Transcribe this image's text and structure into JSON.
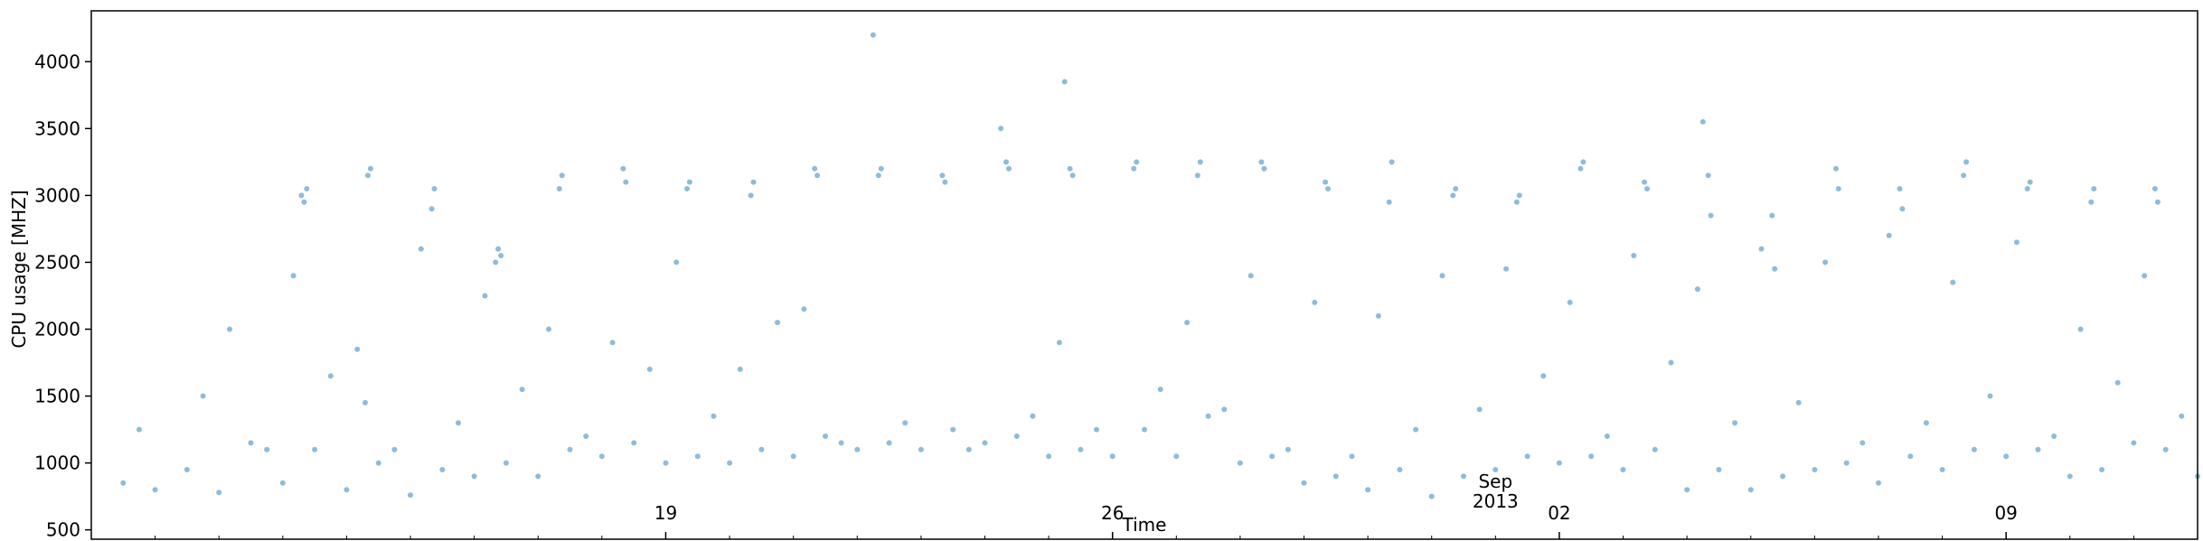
{
  "colors": {
    "series": "#1f77b4",
    "axis": "#000000",
    "background": "#ffffff"
  },
  "chart_data": {
    "type": "scatter",
    "title": "",
    "xlabel": "Time",
    "ylabel": "CPU usage [MHZ]",
    "xlim": [
      "2013-08-10",
      "2013-09-12"
    ],
    "ylim": [
      430,
      4380
    ],
    "y_ticks": [
      500,
      1000,
      1500,
      2000,
      2500,
      3000,
      3500,
      4000
    ],
    "x_ticks": [
      {
        "date": "2013-08-19",
        "label": "19"
      },
      {
        "date": "2013-08-26",
        "label": "26"
      },
      {
        "date": "2013-09-02",
        "label": "02"
      },
      {
        "date": "2013-09-09",
        "label": "09"
      }
    ],
    "x_secondary_label": {
      "date": "2013-09-01",
      "lines": [
        "Sep",
        "2013"
      ]
    },
    "minor_tick_interval_days": 1,
    "grid": false,
    "legend": "none",
    "marker": {
      "size": "small",
      "alpha": 0.5
    },
    "series": [
      {
        "x": [
          "2013-08-13 07:00",
          "2013-08-13 08:00",
          "2013-08-13 09:00",
          "2013-08-14 07:00",
          "2013-08-14 08:00",
          "2013-08-14 09:00",
          "2013-08-15 08:00",
          "2013-08-15 09:00",
          "2013-08-16 08:00",
          "2013-08-16 09:00",
          "2013-08-16 10:00",
          "2013-08-17 08:00",
          "2013-08-17 09:00",
          "2013-08-18 08:00",
          "2013-08-18 09:00",
          "2013-08-19 08:00",
          "2013-08-19 09:00",
          "2013-08-20 08:00",
          "2013-08-20 09:00",
          "2013-08-21 08:00",
          "2013-08-21 09:00",
          "2013-08-22 08:00",
          "2013-08-22 09:00",
          "2013-08-23 08:00",
          "2013-08-23 09:00",
          "2013-08-24 08:00",
          "2013-08-24 09:00",
          "2013-08-25 08:00",
          "2013-08-25 09:00",
          "2013-08-26 08:00",
          "2013-08-26 09:00",
          "2013-08-27 08:00",
          "2013-08-27 09:00",
          "2013-08-28 08:00",
          "2013-08-28 09:00",
          "2013-08-29 08:00",
          "2013-08-29 09:00",
          "2013-08-30 08:00",
          "2013-08-30 09:00",
          "2013-08-31 08:00",
          "2013-08-31 09:00",
          "2013-09-01 08:00",
          "2013-09-01 09:00",
          "2013-09-02 08:00",
          "2013-09-02 09:00",
          "2013-09-03 08:00",
          "2013-09-03 09:00",
          "2013-09-04 08:00",
          "2013-09-04 09:00",
          "2013-09-05 08:00",
          "2013-09-05 09:00",
          "2013-09-06 08:00",
          "2013-09-06 09:00",
          "2013-09-07 08:00",
          "2013-09-07 09:00",
          "2013-09-08 08:00",
          "2013-09-08 09:00",
          "2013-09-09 08:00",
          "2013-09-09 09:00",
          "2013-09-10 08:00",
          "2013-09-10 09:00",
          "2013-09-11 08:00",
          "2013-09-11 09:00",
          "2013-08-10 12:00",
          "2013-08-11 00:00",
          "2013-08-11 12:00",
          "2013-08-12 00:00",
          "2013-08-12 12:00",
          "2013-08-13 00:00",
          "2013-08-13 12:00",
          "2013-08-14 00:00",
          "2013-08-14 12:00",
          "2013-08-15 00:00",
          "2013-08-15 12:00",
          "2013-08-16 00:00",
          "2013-08-16 12:00",
          "2013-08-17 00:00",
          "2013-08-17 12:00",
          "2013-08-18 00:00",
          "2013-08-18 12:00",
          "2013-08-19 00:00",
          "2013-08-19 12:00",
          "2013-08-20 00:00",
          "2013-08-20 12:00",
          "2013-08-21 00:00",
          "2013-08-21 12:00",
          "2013-08-22 00:00",
          "2013-08-22 12:00",
          "2013-08-23 00:00",
          "2013-08-23 12:00",
          "2013-08-24 00:00",
          "2013-08-24 12:00",
          "2013-08-25 00:00",
          "2013-08-25 12:00",
          "2013-08-26 00:00",
          "2013-08-26 12:00",
          "2013-08-27 00:00",
          "2013-08-27 12:00",
          "2013-08-28 00:00",
          "2013-08-28 12:00",
          "2013-08-29 00:00",
          "2013-08-29 12:00",
          "2013-08-30 00:00",
          "2013-08-30 12:00",
          "2013-08-31 00:00",
          "2013-08-31 12:00",
          "2013-09-01 00:00",
          "2013-09-01 12:00",
          "2013-09-02 00:00",
          "2013-09-02 12:00",
          "2013-09-03 00:00",
          "2013-09-03 12:00",
          "2013-09-04 00:00",
          "2013-09-04 12:00",
          "2013-09-05 00:00",
          "2013-09-05 12:00",
          "2013-09-06 00:00",
          "2013-09-06 12:00",
          "2013-09-07 00:00",
          "2013-09-07 12:00",
          "2013-09-08 00:00",
          "2013-09-08 12:00",
          "2013-09-09 00:00",
          "2013-09-09 12:00",
          "2013-09-10 00:00",
          "2013-09-10 12:00",
          "2013-09-11 00:00",
          "2013-09-11 12:00",
          "2013-09-12 00:00",
          "2013-08-10 18:00",
          "2013-08-11 18:00",
          "2013-08-12 18:00",
          "2013-08-13 18:00",
          "2013-08-14 18:00",
          "2013-08-15 18:00",
          "2013-08-16 18:00",
          "2013-08-17 18:00",
          "2013-08-18 18:00",
          "2013-08-19 18:00",
          "2013-08-20 18:00",
          "2013-08-21 18:00",
          "2013-08-22 18:00",
          "2013-08-23 18:00",
          "2013-08-24 18:00",
          "2013-08-25 18:00",
          "2013-08-26 18:00",
          "2013-08-27 18:00",
          "2013-08-28 18:00",
          "2013-08-29 18:00",
          "2013-08-30 18:00",
          "2013-08-31 18:00",
          "2013-09-01 18:00",
          "2013-09-02 18:00",
          "2013-09-03 18:00",
          "2013-09-04 18:00",
          "2013-09-05 18:00",
          "2013-09-06 18:00",
          "2013-09-07 18:00",
          "2013-09-08 18:00",
          "2013-09-09 18:00",
          "2013-09-10 18:00",
          "2013-09-11 18:00",
          "2013-08-12 04:00",
          "2013-08-13 04:00",
          "2013-08-14 04:00",
          "2013-08-15 04:00",
          "2013-08-16 04:00",
          "2013-08-17 04:00",
          "2013-08-18 04:00",
          "2013-08-19 04:00",
          "2013-08-20 04:00",
          "2013-08-21 04:00",
          "2013-08-25 04:00",
          "2013-08-27 04:00",
          "2013-08-28 04:00",
          "2013-08-29 04:00",
          "2013-08-30 04:00",
          "2013-08-31 04:00",
          "2013-09-01 04:00",
          "2013-09-02 04:00",
          "2013-09-03 04:00",
          "2013-09-04 04:00",
          "2013-09-05 04:00",
          "2013-09-06 04:00",
          "2013-09-07 04:00",
          "2013-09-08 04:00",
          "2013-09-09 04:00",
          "2013-09-10 04:00",
          "2013-09-11 04:00",
          "2013-08-22 06:00",
          "2013-08-24 06:00",
          "2013-08-25 06:00",
          "2013-09-04 06:00"
        ],
        "y": [
          3000,
          2950,
          3050,
          1450,
          3150,
          3200,
          2900,
          3050,
          2500,
          2600,
          2550,
          3050,
          3150,
          3200,
          3100,
          3050,
          3100,
          3000,
          3100,
          3200,
          3150,
          3150,
          3200,
          3150,
          3100,
          3250,
          3200,
          3200,
          3150,
          3200,
          3250,
          3150,
          3250,
          3250,
          3200,
          3100,
          3050,
          2950,
          3250,
          3000,
          3050,
          2950,
          3000,
          3200,
          3250,
          3100,
          3050,
          3150,
          2850,
          2850,
          2450,
          3200,
          3050,
          3050,
          2900,
          3150,
          3250,
          3050,
          3100,
          2950,
          3050,
          3050,
          2950,
          850,
          800,
          950,
          780,
          1150,
          850,
          1100,
          800,
          1000,
          760,
          950,
          900,
          1000,
          900,
          1100,
          1050,
          1150,
          1000,
          1050,
          1000,
          1100,
          1050,
          1200,
          1100,
          1150,
          1100,
          1250,
          1150,
          1200,
          1050,
          1100,
          1050,
          1250,
          1050,
          1350,
          1000,
          1050,
          850,
          900,
          800,
          950,
          750,
          900,
          950,
          1050,
          1000,
          1050,
          950,
          1100,
          800,
          950,
          800,
          900,
          950,
          1000,
          850,
          1050,
          950,
          1100,
          1050,
          1100,
          900,
          950,
          1150,
          1100,
          900,
          1250,
          1500,
          1100,
          1650,
          1100,
          1300,
          1550,
          1200,
          1700,
          1350,
          2050,
          1150,
          1300,
          1100,
          1350,
          1250,
          1550,
          1400,
          1100,
          1050,
          1250,
          1400,
          1650,
          1200,
          1750,
          1300,
          1450,
          1150,
          1300,
          1500,
          1200,
          1600,
          1350,
          2000,
          2400,
          1850,
          2600,
          2250,
          2000,
          1900,
          2500,
          1700,
          2150,
          1900,
          2050,
          2400,
          2200,
          2100,
          2400,
          2450,
          2200,
          2550,
          2300,
          2600,
          2500,
          2700,
          2350,
          2650,
          2000,
          2400,
          4200,
          3500,
          3850,
          3550
        ]
      }
    ]
  }
}
